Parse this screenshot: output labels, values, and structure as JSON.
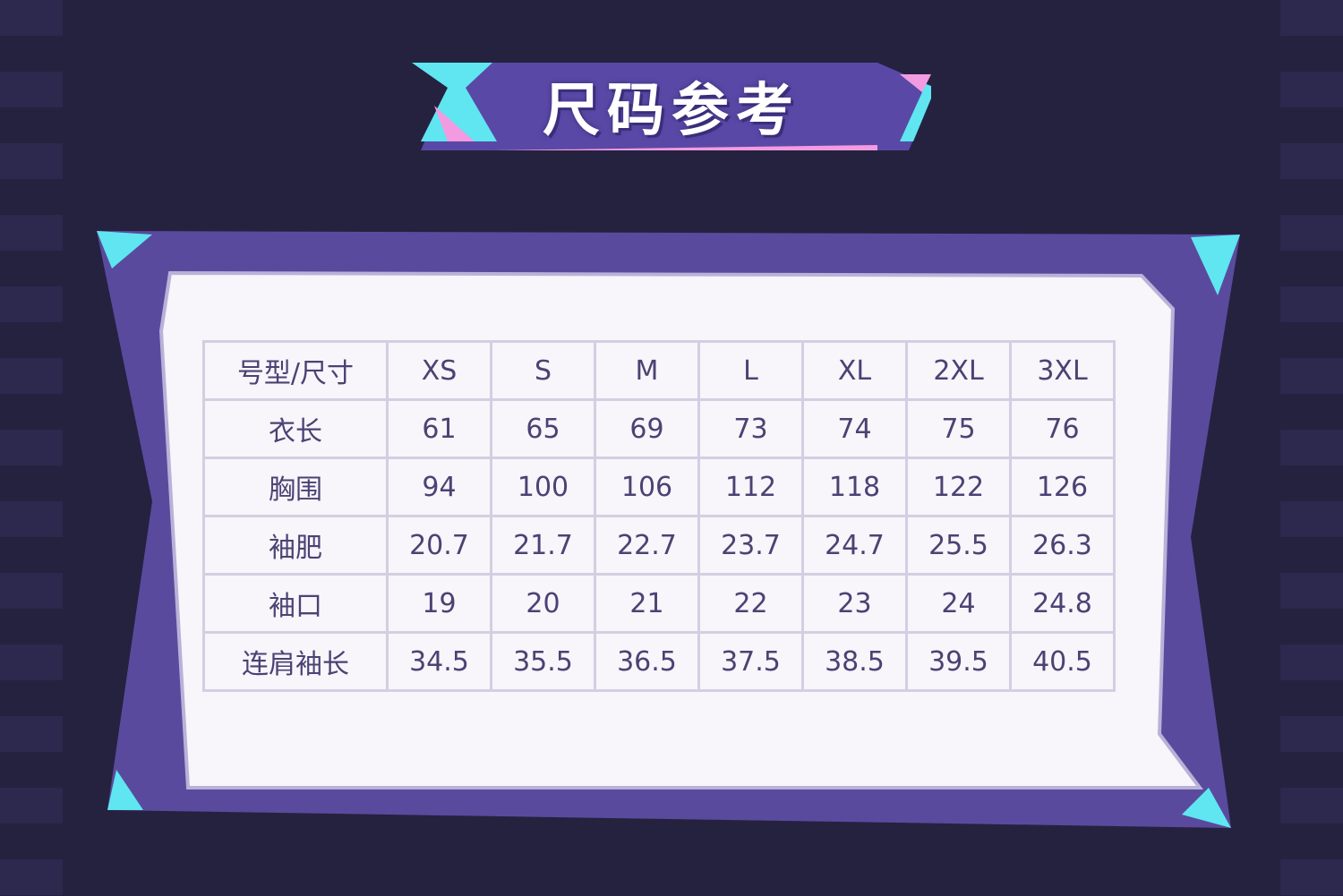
{
  "title": "尺码参考",
  "colors": {
    "background": "#25223f",
    "frame": "#5a4a9e",
    "accent_cyan": "#5fe6f0",
    "accent_pink": "#f29be0",
    "panel": "#f8f5fb",
    "text": "#4a4373"
  },
  "table": {
    "header": [
      "号型/尺寸",
      "XS",
      "S",
      "M",
      "L",
      "XL",
      "2XL",
      "3XL"
    ],
    "rows": [
      [
        "衣长",
        "61",
        "65",
        "69",
        "73",
        "74",
        "75",
        "76"
      ],
      [
        "胸围",
        "94",
        "100",
        "106",
        "112",
        "118",
        "122",
        "126"
      ],
      [
        "袖肥",
        "20.7",
        "21.7",
        "22.7",
        "23.7",
        "24.7",
        "25.5",
        "26.3"
      ],
      [
        "袖口",
        "19",
        "20",
        "21",
        "22",
        "23",
        "24",
        "24.8"
      ],
      [
        "连肩袖长",
        "34.5",
        "35.5",
        "36.5",
        "37.5",
        "38.5",
        "39.5",
        "40.5"
      ]
    ]
  }
}
